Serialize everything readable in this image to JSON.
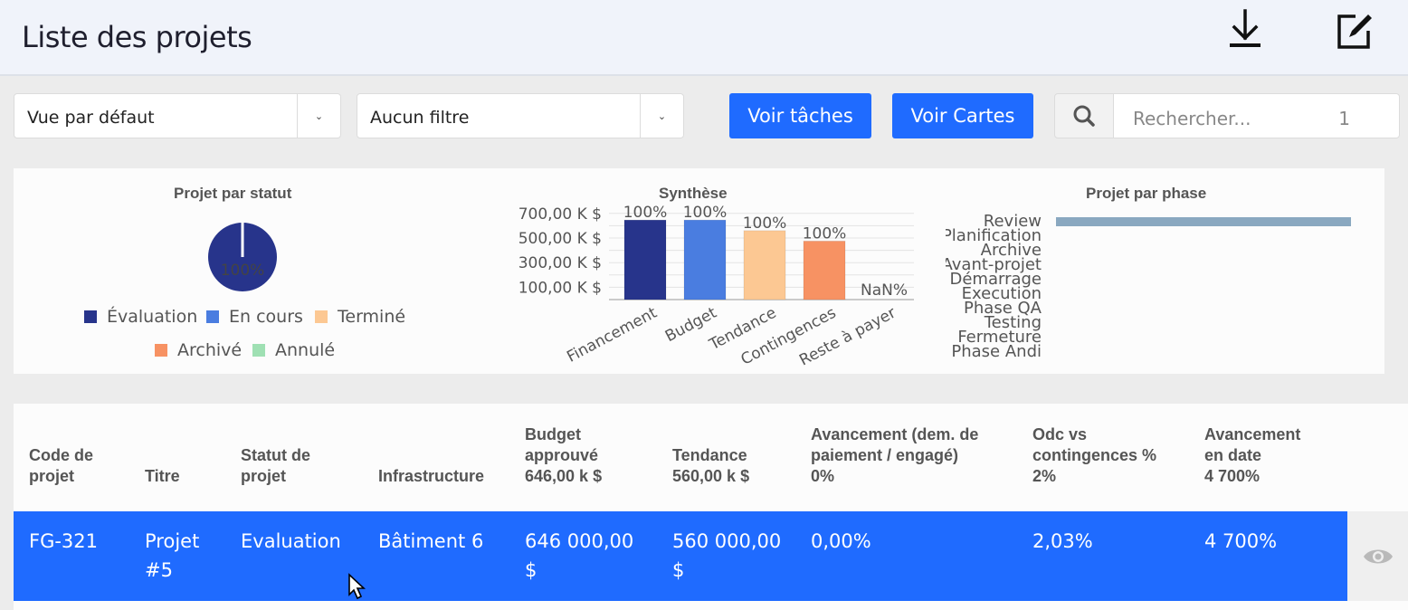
{
  "header": {
    "title": "Liste des projets",
    "icons": [
      "download-icon",
      "edit-icon"
    ]
  },
  "toolbar": {
    "view_select": "Vue par défaut",
    "filter_select": "Aucun filtre",
    "tasks_button": "Voir tâches",
    "cards_button": "Voir Cartes",
    "search_placeholder": "Rechercher...",
    "result_count": "1"
  },
  "charts": {
    "status": {
      "title": "Projet par statut",
      "slice_label": "100%",
      "legend": [
        {
          "label": "Évaluation",
          "color": "#27348b"
        },
        {
          "label": "En cours",
          "color": "#4a7de0"
        },
        {
          "label": "Terminé",
          "color": "#fcc893"
        },
        {
          "label": "Archivé",
          "color": "#f79263"
        },
        {
          "label": "Annulé",
          "color": "#9fe0b3"
        }
      ]
    },
    "synthese": {
      "title": "Synthèse"
    },
    "phase": {
      "title": "Projet par phase"
    }
  },
  "chart_data": [
    {
      "type": "pie",
      "title": "Projet par statut",
      "labels": [
        "Évaluation",
        "En cours",
        "Terminé",
        "Archivé",
        "Annulé"
      ],
      "values": [
        100,
        0,
        0,
        0,
        0
      ],
      "data_labels": [
        "100%"
      ]
    },
    {
      "type": "bar",
      "title": "Synthèse",
      "categories": [
        "Financement",
        "Budget",
        "Tendance",
        "Contingences",
        "Reste à payer"
      ],
      "values": [
        646000,
        646000,
        560000,
        475000,
        0
      ],
      "data_labels": [
        "100%",
        "100%",
        "100%",
        "100%",
        "NaN%"
      ],
      "colors": [
        "#27348b",
        "#4a7de0",
        "#fcc893",
        "#f79263",
        "#cccccc"
      ],
      "y_ticks": [
        "100,00 K $",
        "300,00 K $",
        "500,00 K $",
        "700,00 K $"
      ],
      "y_tick_values": [
        100000,
        300000,
        500000,
        700000
      ],
      "ylim": [
        0,
        750000
      ],
      "grid": true
    },
    {
      "type": "bar",
      "orientation": "horizontal",
      "title": "Projet par phase",
      "categories": [
        "Review",
        "Planification",
        "Archive",
        "Avant-projet",
        "Démarrage",
        "Execution",
        "Phase QA",
        "Testing",
        "Fermeture",
        "Phase Andi"
      ],
      "values": [
        1,
        0,
        0,
        0,
        0,
        0,
        0,
        0,
        0,
        0
      ],
      "color": "#8aa8c0"
    }
  ],
  "table": {
    "headers": [
      {
        "lines": [
          "Code de",
          "projet"
        ]
      },
      {
        "lines": [
          "Titre"
        ]
      },
      {
        "lines": [
          "Statut de",
          "projet"
        ]
      },
      {
        "lines": [
          "Infrastructure"
        ]
      },
      {
        "lines": [
          "Budget",
          "approuvé",
          "646,00 k $"
        ]
      },
      {
        "lines": [
          "Tendance",
          "560,00 k $"
        ]
      },
      {
        "lines": [
          "Avancement (dem. de",
          "paiement / engagé)",
          "0%"
        ]
      },
      {
        "lines": [
          "Odc vs",
          "contingences %",
          "2%"
        ]
      },
      {
        "lines": [
          "Avancement",
          "en date",
          "4 700%"
        ]
      }
    ],
    "rows": [
      {
        "cells": [
          {
            "lines": [
              "FG-321"
            ]
          },
          {
            "lines": [
              "Projet",
              "#5"
            ]
          },
          {
            "lines": [
              "Evaluation"
            ]
          },
          {
            "lines": [
              "Bâtiment 6"
            ]
          },
          {
            "lines": [
              "646 000,00",
              "$"
            ]
          },
          {
            "lines": [
              "560 000,00",
              "$"
            ]
          },
          {
            "lines": [
              "0,00%"
            ]
          },
          {
            "lines": [
              "2,03%"
            ]
          },
          {
            "lines": [
              "4 700%"
            ]
          }
        ]
      }
    ]
  }
}
